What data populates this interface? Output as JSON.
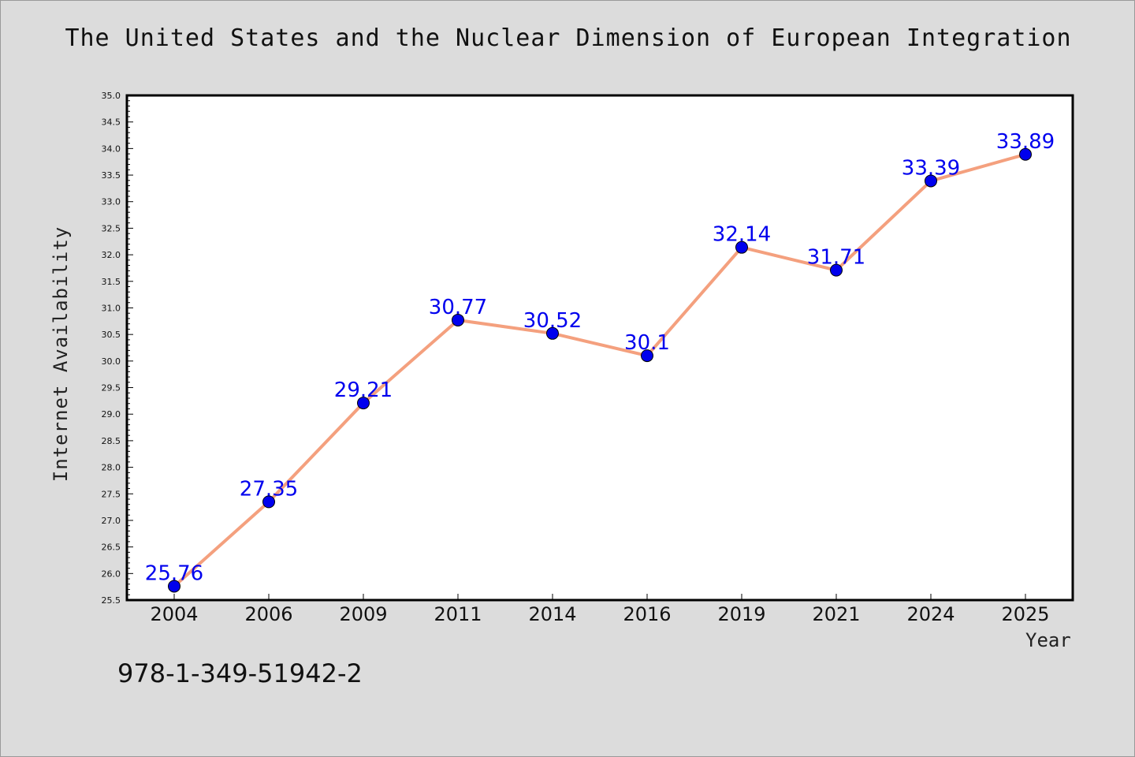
{
  "chart_data": {
    "type": "line",
    "title": "The United States and the Nuclear Dimension of European Integration",
    "xlabel": "Year",
    "ylabel": "Internet Availability",
    "categories": [
      "2004",
      "2006",
      "2009",
      "2011",
      "2014",
      "2016",
      "2019",
      "2021",
      "2024",
      "2025"
    ],
    "series": [
      {
        "values": [
          25.76,
          27.35,
          29.21,
          30.77,
          30.52,
          30.1,
          32.14,
          31.71,
          33.39,
          33.89
        ],
        "data_labels": [
          "25.76",
          "27.35",
          "29.21",
          "30.77",
          "30.52",
          "30.1",
          "32.14",
          "31.71",
          "33.39",
          "33.89"
        ],
        "line_color": "#f4a07e",
        "marker_color": "#0000ee"
      }
    ],
    "ylim": [
      25.5,
      35.0
    ],
    "yticks": [
      "25.5",
      "26.0",
      "26.5",
      "27.0",
      "27.5",
      "28.0",
      "28.5",
      "29.0",
      "29.5",
      "30.0",
      "30.5",
      "31.0",
      "31.5",
      "32.0",
      "32.5",
      "33.0",
      "33.5",
      "34.0",
      "34.5",
      "35.0"
    ],
    "grid": false,
    "legend": "none"
  },
  "footnote": "978-1-349-51942-2",
  "colors": {
    "background": "#dcdcdc",
    "plot_background": "#ffffff",
    "line": "#f4a07e",
    "marker": "#0000ee",
    "data_label": "#0000ee"
  }
}
